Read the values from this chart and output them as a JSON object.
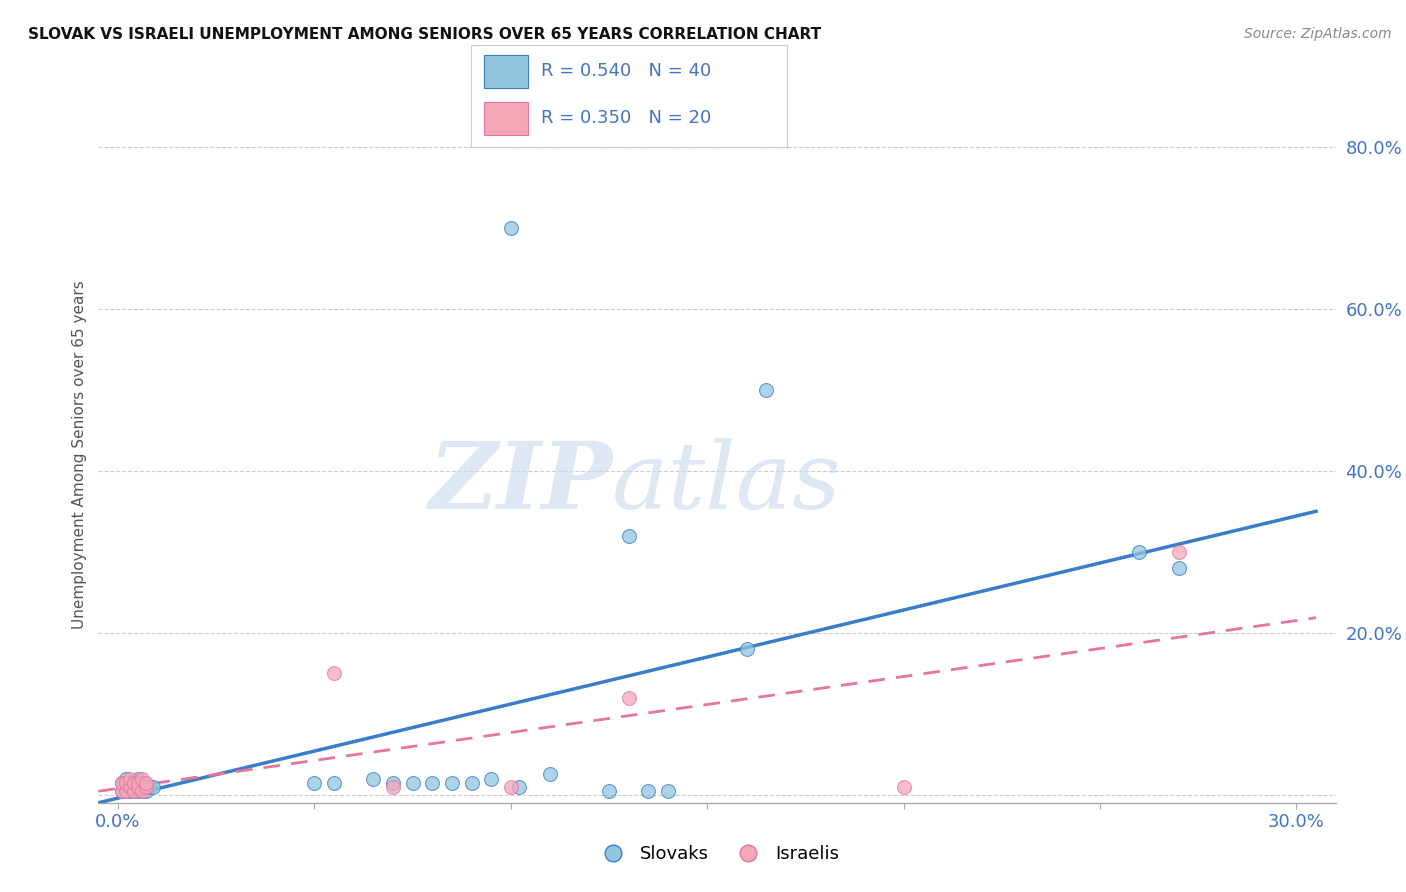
{
  "title": "SLOVAK VS ISRAELI UNEMPLOYMENT AMONG SENIORS OVER 65 YEARS CORRELATION CHART",
  "source": "Source: ZipAtlas.com",
  "ylabel": "Unemployment Among Seniors over 65 years",
  "xlim": [
    -0.005,
    0.31
  ],
  "ylim": [
    -0.01,
    0.85
  ],
  "xticks": [
    0.0,
    0.05,
    0.1,
    0.15,
    0.2,
    0.25,
    0.3
  ],
  "yticks_right": [
    0.0,
    0.2,
    0.4,
    0.6,
    0.8
  ],
  "blue_color": "#92C5DE",
  "pink_color": "#F4A7B9",
  "blue_line_color": "#3A7DC9",
  "pink_line_color": "#E8749A",
  "watermark_zip": "ZIP",
  "watermark_atlas": "atlas",
  "legend_label1": "Slovaks",
  "legend_label2": "Israelis",
  "slovaks_x": [
    0.001,
    0.001,
    0.002,
    0.002,
    0.002,
    0.003,
    0.003,
    0.003,
    0.004,
    0.004,
    0.004,
    0.005,
    0.005,
    0.005,
    0.006,
    0.006,
    0.007,
    0.007,
    0.008,
    0.009,
    0.05,
    0.055,
    0.065,
    0.07,
    0.075,
    0.08,
    0.085,
    0.09,
    0.095,
    0.1,
    0.102,
    0.11,
    0.125,
    0.13,
    0.135,
    0.14,
    0.16,
    0.165,
    0.26,
    0.27
  ],
  "slovaks_y": [
    0.005,
    0.015,
    0.005,
    0.01,
    0.02,
    0.005,
    0.01,
    0.015,
    0.005,
    0.01,
    0.015,
    0.005,
    0.01,
    0.02,
    0.005,
    0.015,
    0.005,
    0.01,
    0.01,
    0.01,
    0.015,
    0.015,
    0.02,
    0.015,
    0.015,
    0.015,
    0.015,
    0.015,
    0.02,
    0.7,
    0.01,
    0.025,
    0.005,
    0.32,
    0.005,
    0.005,
    0.18,
    0.5,
    0.3,
    0.28
  ],
  "israelis_x": [
    0.001,
    0.001,
    0.002,
    0.002,
    0.003,
    0.003,
    0.004,
    0.004,
    0.005,
    0.005,
    0.006,
    0.006,
    0.007,
    0.007,
    0.055,
    0.07,
    0.1,
    0.13,
    0.2,
    0.27
  ],
  "israelis_y": [
    0.005,
    0.015,
    0.005,
    0.015,
    0.01,
    0.02,
    0.005,
    0.015,
    0.01,
    0.015,
    0.005,
    0.02,
    0.01,
    0.015,
    0.15,
    0.01,
    0.01,
    0.12,
    0.01,
    0.3
  ]
}
